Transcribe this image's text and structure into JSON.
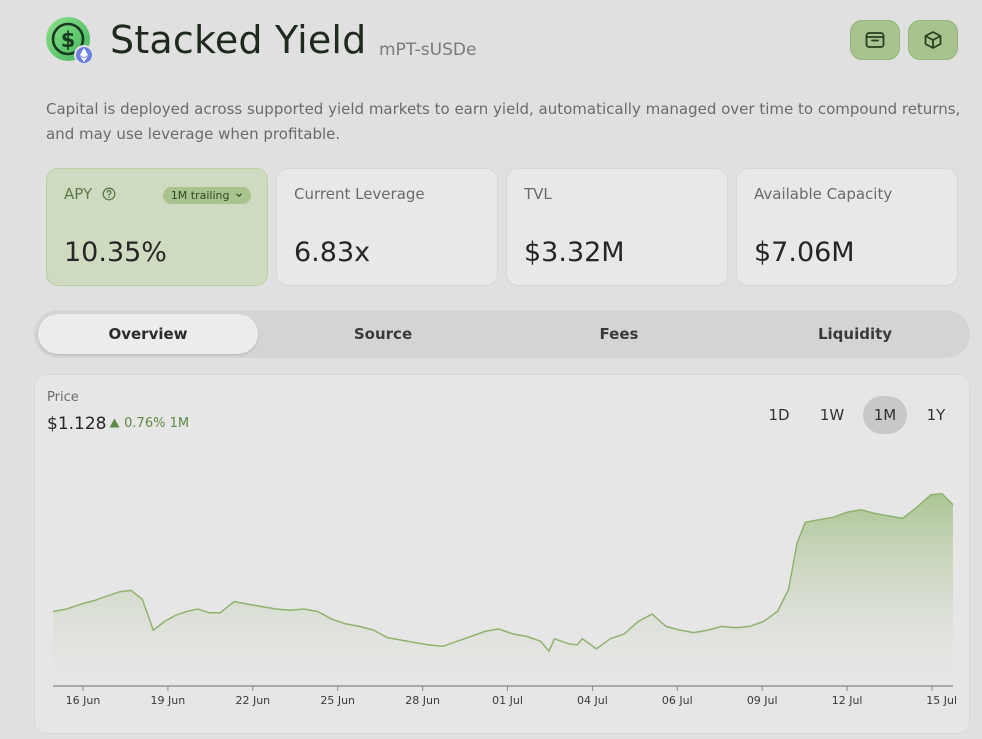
{
  "header": {
    "title": "Stacked Yield",
    "subtitle": "mPT-sUSDe",
    "wallet_icon": "wallet-icon",
    "cube_icon": "cube-icon"
  },
  "description": "Capital is deployed across supported yield markets to earn yield, automatically managed over time to compound returns, and may use leverage when profitable.",
  "stats": [
    {
      "label": "APY",
      "value": "10.35%",
      "badge": "1M trailing"
    },
    {
      "label": "Current Leverage",
      "value": "6.83x"
    },
    {
      "label": "TVL",
      "value": "$3.32M"
    },
    {
      "label": "Available Capacity",
      "value": "$7.06M"
    }
  ],
  "tabs": [
    "Overview",
    "Source",
    "Fees",
    "Liquidity"
  ],
  "active_tab": "Overview",
  "price": {
    "label": "Price",
    "value": "$1.128",
    "change": "0.76% 1M",
    "ranges": [
      "1D",
      "1W",
      "1M",
      "1Y"
    ],
    "active_range": "1M"
  },
  "colors": {
    "accent": "#a8c48e",
    "positive": "#5f8a45",
    "line": "#8fb36e"
  },
  "chart_data": {
    "type": "area",
    "x_ticks": [
      "16 Jun",
      "19 Jun",
      "22 Jun",
      "25 Jun",
      "28 Jun",
      "01 Jul",
      "04 Jul",
      "06 Jul",
      "09 Jul",
      "12 Jul",
      "15 Jul"
    ],
    "points": [
      [
        0,
        1.119
      ],
      [
        0.5,
        1.1192
      ],
      [
        1,
        1.1196
      ],
      [
        1.5,
        1.1199
      ],
      [
        2,
        1.1203
      ],
      [
        2.4,
        1.1206
      ],
      [
        2.8,
        1.1207
      ],
      [
        3.2,
        1.12
      ],
      [
        3.6,
        1.1175
      ],
      [
        4.0,
        1.1182
      ],
      [
        4.4,
        1.1187
      ],
      [
        4.8,
        1.119
      ],
      [
        5.2,
        1.1192
      ],
      [
        5.6,
        1.1189
      ],
      [
        6.0,
        1.1189
      ],
      [
        6.5,
        1.1198
      ],
      [
        7.0,
        1.1196
      ],
      [
        7.5,
        1.1194
      ],
      [
        8.0,
        1.1192
      ],
      [
        8.5,
        1.1191
      ],
      [
        9.0,
        1.1192
      ],
      [
        9.5,
        1.119
      ],
      [
        10.0,
        1.1184
      ],
      [
        10.5,
        1.118
      ],
      [
        11.0,
        1.1178
      ],
      [
        11.5,
        1.1175
      ],
      [
        12.0,
        1.1169
      ],
      [
        12.5,
        1.1167
      ],
      [
        13.0,
        1.1165
      ],
      [
        13.5,
        1.1163
      ],
      [
        14.0,
        1.1162
      ],
      [
        14.5,
        1.1166
      ],
      [
        15.0,
        1.117
      ],
      [
        15.5,
        1.1174
      ],
      [
        16.0,
        1.1176
      ],
      [
        16.5,
        1.1172
      ],
      [
        17.0,
        1.117
      ],
      [
        17.5,
        1.1166
      ],
      [
        17.8,
        1.1158
      ],
      [
        18.0,
        1.1168
      ],
      [
        18.5,
        1.1164
      ],
      [
        18.8,
        1.1163
      ],
      [
        19.0,
        1.1168
      ],
      [
        19.5,
        1.116
      ],
      [
        20.0,
        1.1168
      ],
      [
        20.5,
        1.1172
      ],
      [
        21.0,
        1.1182
      ],
      [
        21.5,
        1.1188
      ],
      [
        22.0,
        1.1178
      ],
      [
        22.5,
        1.1175
      ],
      [
        23.0,
        1.1173
      ],
      [
        23.5,
        1.1175
      ],
      [
        24.0,
        1.1178
      ],
      [
        24.5,
        1.1177
      ],
      [
        25.0,
        1.1178
      ],
      [
        25.5,
        1.1182
      ],
      [
        26.0,
        1.119
      ],
      [
        26.4,
        1.1208
      ],
      [
        26.7,
        1.1245
      ],
      [
        27.0,
        1.1262
      ],
      [
        27.5,
        1.1264
      ],
      [
        28.0,
        1.1266
      ],
      [
        28.5,
        1.127
      ],
      [
        29.0,
        1.1272
      ],
      [
        29.5,
        1.1269
      ],
      [
        30.0,
        1.1267
      ],
      [
        30.5,
        1.1265
      ],
      [
        31.0,
        1.1274
      ],
      [
        31.5,
        1.1284
      ],
      [
        31.9,
        1.1285
      ],
      [
        32.3,
        1.1276
      ]
    ],
    "x_range": [
      0,
      32.3
    ],
    "ylim": [
      1.113,
      1.13
    ],
    "grid": false
  }
}
